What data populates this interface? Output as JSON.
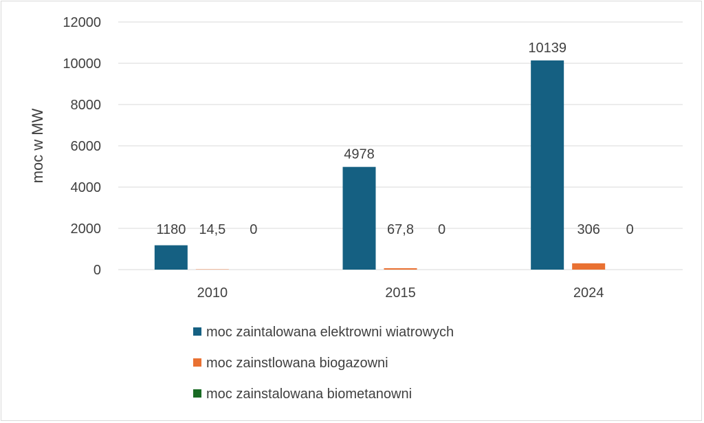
{
  "chart_data": {
    "type": "bar",
    "title": "",
    "xlabel": "",
    "ylabel": "moc w MW",
    "ylim": [
      0,
      12000
    ],
    "yticks": [
      0,
      2000,
      4000,
      6000,
      8000,
      10000,
      12000
    ],
    "grid": true,
    "legend_position": "bottom",
    "categories": [
      "2010",
      "2015",
      "2024"
    ],
    "series": [
      {
        "name": "moc zaintalowana elektrowni wiatrowych",
        "color": "#156082",
        "values": [
          1180,
          4978,
          10139
        ],
        "labels": [
          "1180",
          "4978",
          "10139"
        ]
      },
      {
        "name": "moc zainstlowana biogazowni",
        "color": "#E97132",
        "values": [
          14.5,
          67.8,
          306
        ],
        "labels": [
          "14,5",
          "67,8",
          "306"
        ]
      },
      {
        "name": "moc zainstalowana biometanowni",
        "color": "#196B24",
        "values": [
          0,
          0,
          0
        ],
        "labels": [
          "0",
          "0",
          "0"
        ]
      }
    ]
  }
}
